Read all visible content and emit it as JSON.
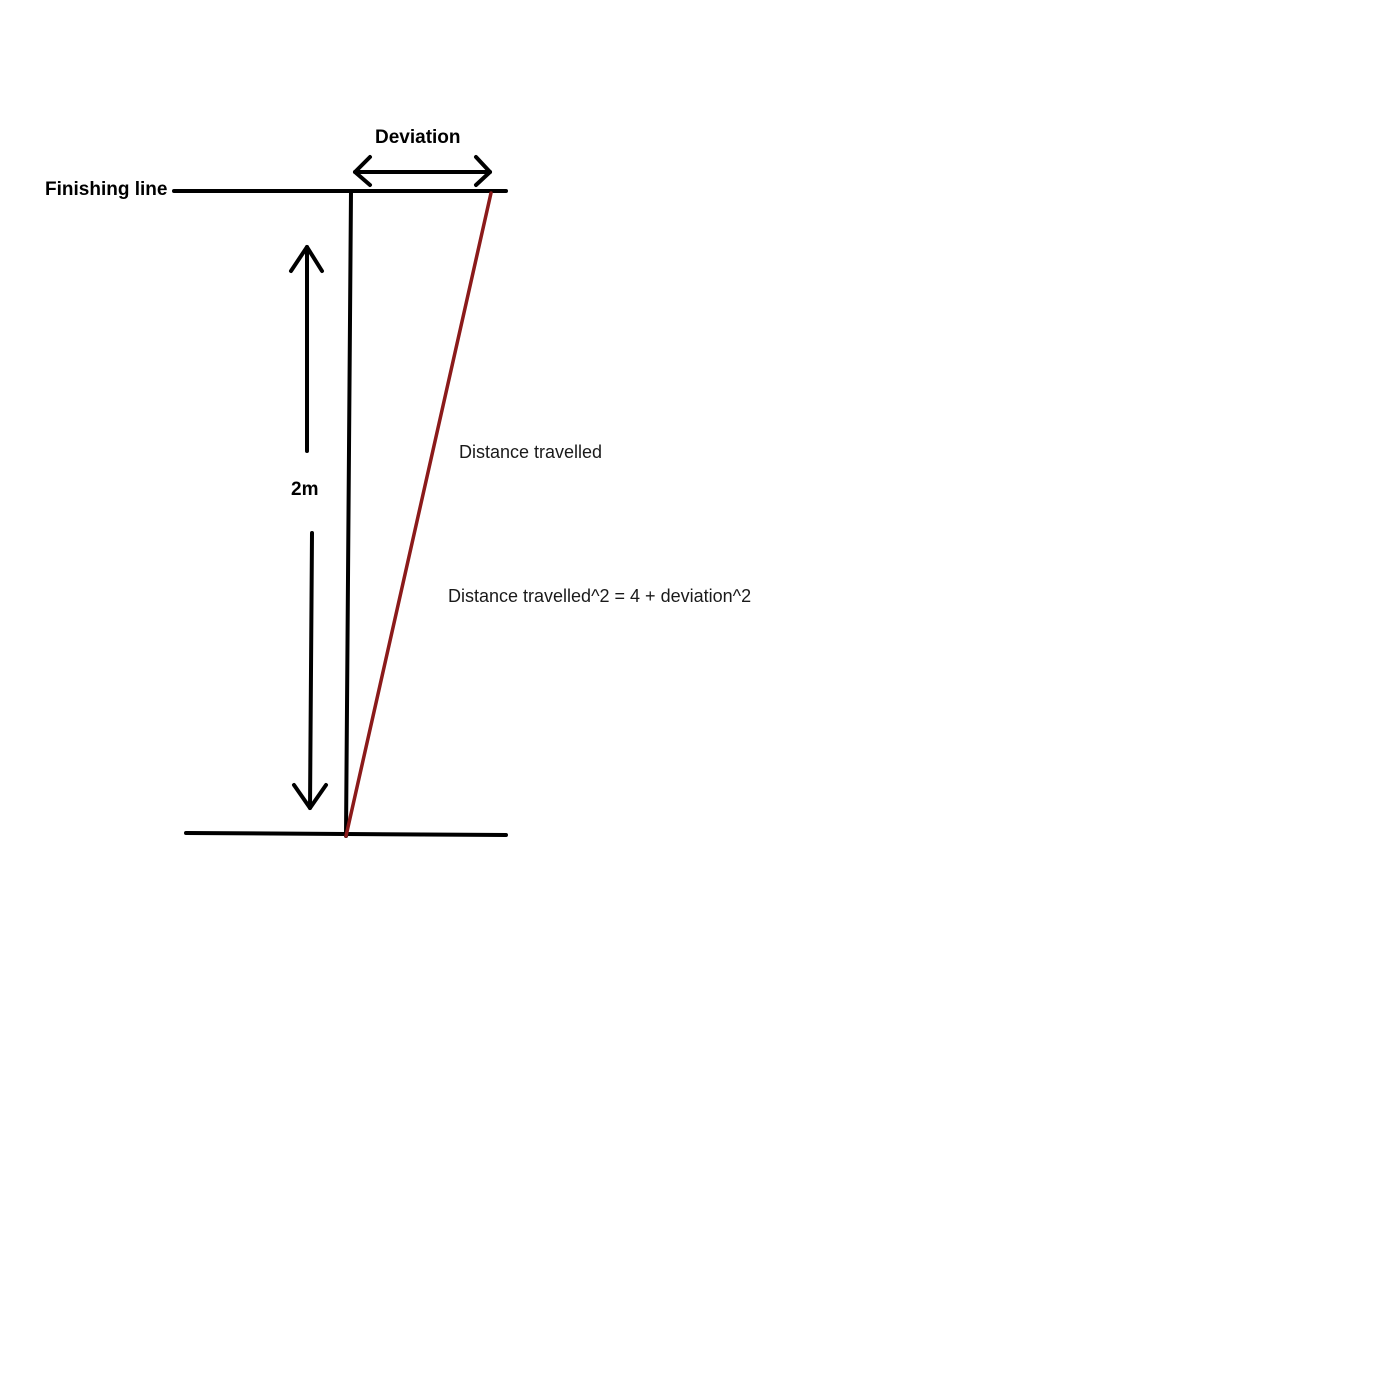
{
  "labels": {
    "finishing_line": "Finishing line",
    "deviation": "Deviation",
    "height": "2m",
    "hypotenuse": "Distance travelled",
    "equation": "Distance travelled^2 = 4 + deviation^2"
  },
  "colors": {
    "line": "#000000",
    "hypotenuse": "#8b1a1a",
    "background": "#ffffff"
  }
}
